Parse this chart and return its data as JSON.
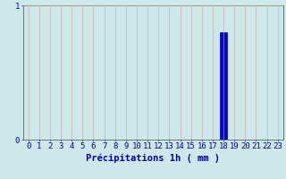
{
  "categories": [
    0,
    1,
    2,
    3,
    4,
    5,
    6,
    7,
    8,
    9,
    10,
    11,
    12,
    13,
    14,
    15,
    16,
    17,
    18,
    19,
    20,
    21,
    22,
    23
  ],
  "values": [
    0,
    0,
    0,
    0,
    0,
    0,
    0,
    0,
    0,
    0,
    0,
    0,
    0,
    0,
    0,
    0,
    0,
    0,
    0.8,
    0,
    0,
    0,
    0,
    0
  ],
  "bar_color": "#0000ee",
  "bar_edge_color": "#00008b",
  "background_color": "#cce8e8",
  "grid_color": "#c8a8a8",
  "axis_color": "#606060",
  "xlabel": "Précipitations 1h ( mm )",
  "xlabel_color": "#0000aa",
  "tick_label_color": "#0000aa",
  "ylim": [
    0,
    1
  ],
  "yticks": [
    0,
    1
  ],
  "ylabel_0": "0",
  "ylabel_1": "1",
  "xlabel_fontsize": 7.5,
  "tick_fontsize": 6.5
}
